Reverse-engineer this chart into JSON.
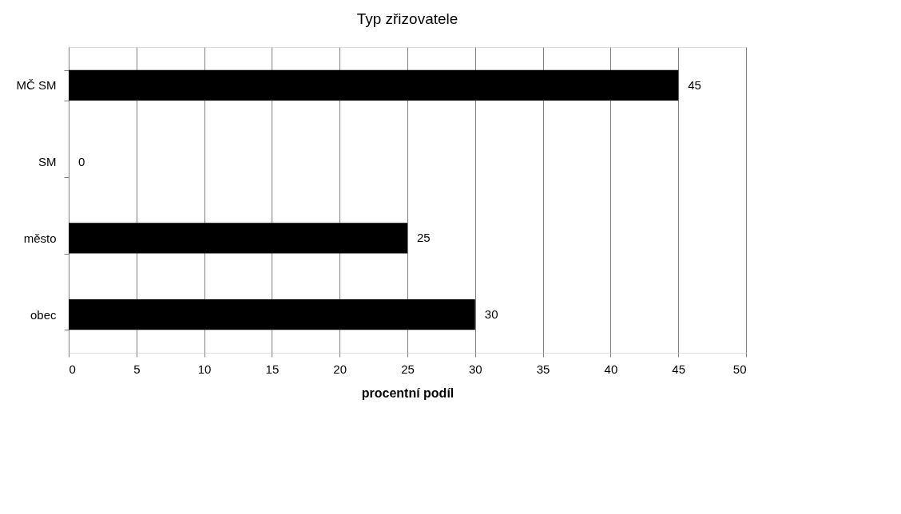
{
  "chart_data": {
    "type": "bar",
    "orientation": "horizontal",
    "title": "Typ zřizovatele",
    "xlabel": "procentní podíl",
    "categories": [
      "MČ SM",
      "SM",
      "město",
      "obec"
    ],
    "values": [
      45,
      0,
      25,
      30
    ],
    "color": "#000000",
    "xlim": [
      0,
      50
    ],
    "xticks": [
      0,
      5,
      10,
      15,
      20,
      25,
      30,
      35,
      40,
      45,
      50
    ],
    "grid": "x",
    "data_labels": true
  }
}
